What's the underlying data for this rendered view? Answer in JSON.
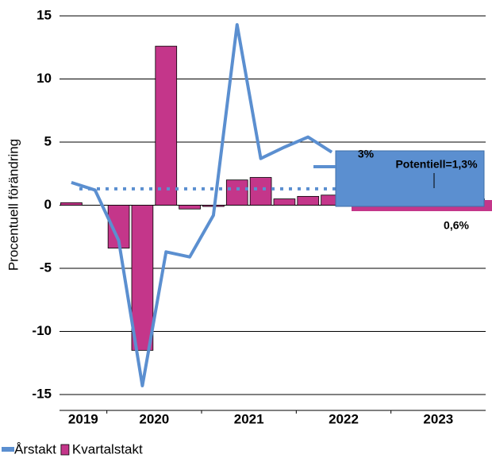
{
  "chart_data": {
    "type": "bar",
    "y_axis_label": "Procentuell förändring",
    "categories": [
      null,
      null,
      null,
      null,
      null,
      null,
      null,
      null,
      null,
      null,
      null,
      null,
      null,
      null,
      null,
      null,
      null,
      null
    ],
    "year_labels": [
      "2019",
      "2020",
      "2021",
      "2022",
      "2023"
    ],
    "series": [
      {
        "name": "Årstakt",
        "color": "#5b8fd0",
        "type": "line",
        "values": [
          1.8,
          1.2,
          -2.8,
          -14.3,
          -3.7,
          -4.1,
          -0.8,
          14.3,
          3.7,
          4.6,
          5.4,
          4.2,
          null,
          null,
          null,
          null,
          null,
          null
        ]
      },
      {
        "name": "Kvartalstakt",
        "color": "#c4368a",
        "type": "bar",
        "values": [
          0.2,
          0,
          -3.4,
          -11.5,
          12.6,
          -0.3,
          -0.1,
          2.0,
          2.2,
          0.5,
          0.7,
          0.8,
          0.5,
          0.5,
          0.5,
          0.5,
          0.5,
          0.5
        ]
      }
    ],
    "potential": {
      "value": 1.3,
      "color": "#5b8fd0"
    },
    "annotations": [
      "3%",
      "Potentiell=1,3%",
      "0,6%"
    ],
    "ylim": [
      -15,
      15
    ],
    "yticks": [
      15,
      10,
      5,
      0,
      -5,
      -10,
      -15
    ],
    "grid": true
  }
}
